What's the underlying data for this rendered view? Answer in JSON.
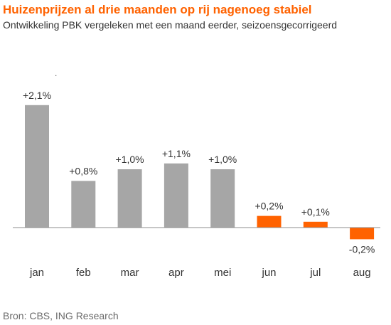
{
  "title": "Huizenprijzen al drie maanden op rij nagenoeg stabiel",
  "subtitle": "Ontwikkeling PBK vergeleken met een maand eerder, seizoensgecorrigeerd",
  "source": "Bron: CBS, ING Research",
  "stray_mark": ".",
  "chart_data": {
    "type": "bar",
    "title": "Huizenprijzen al drie maanden op rij nagenoeg stabiel",
    "subtitle": "Ontwikkeling PBK vergeleken met een maand eerder, seizoensgecorrigeerd",
    "categories": [
      "jan",
      "feb",
      "mar",
      "apr",
      "mei",
      "jun",
      "jul",
      "aug"
    ],
    "values": [
      2.1,
      0.8,
      1.0,
      1.1,
      1.0,
      0.2,
      0.1,
      -0.2
    ],
    "data_labels": [
      "+2,1%",
      "+0,8%",
      "+1,0%",
      "+1,1%",
      "+1,0%",
      "+0,2%",
      "+0,1%",
      "-0,2%"
    ],
    "colors": [
      "#A6A6A6",
      "#A6A6A6",
      "#A6A6A6",
      "#A6A6A6",
      "#A6A6A6",
      "#FF6200",
      "#FF6200",
      "#FF6200"
    ],
    "baseline_color": "#8c8c8c",
    "xlabel": "",
    "ylabel": "",
    "ylim": [
      -0.3,
      2.1
    ],
    "grid": false,
    "legend": "none"
  }
}
